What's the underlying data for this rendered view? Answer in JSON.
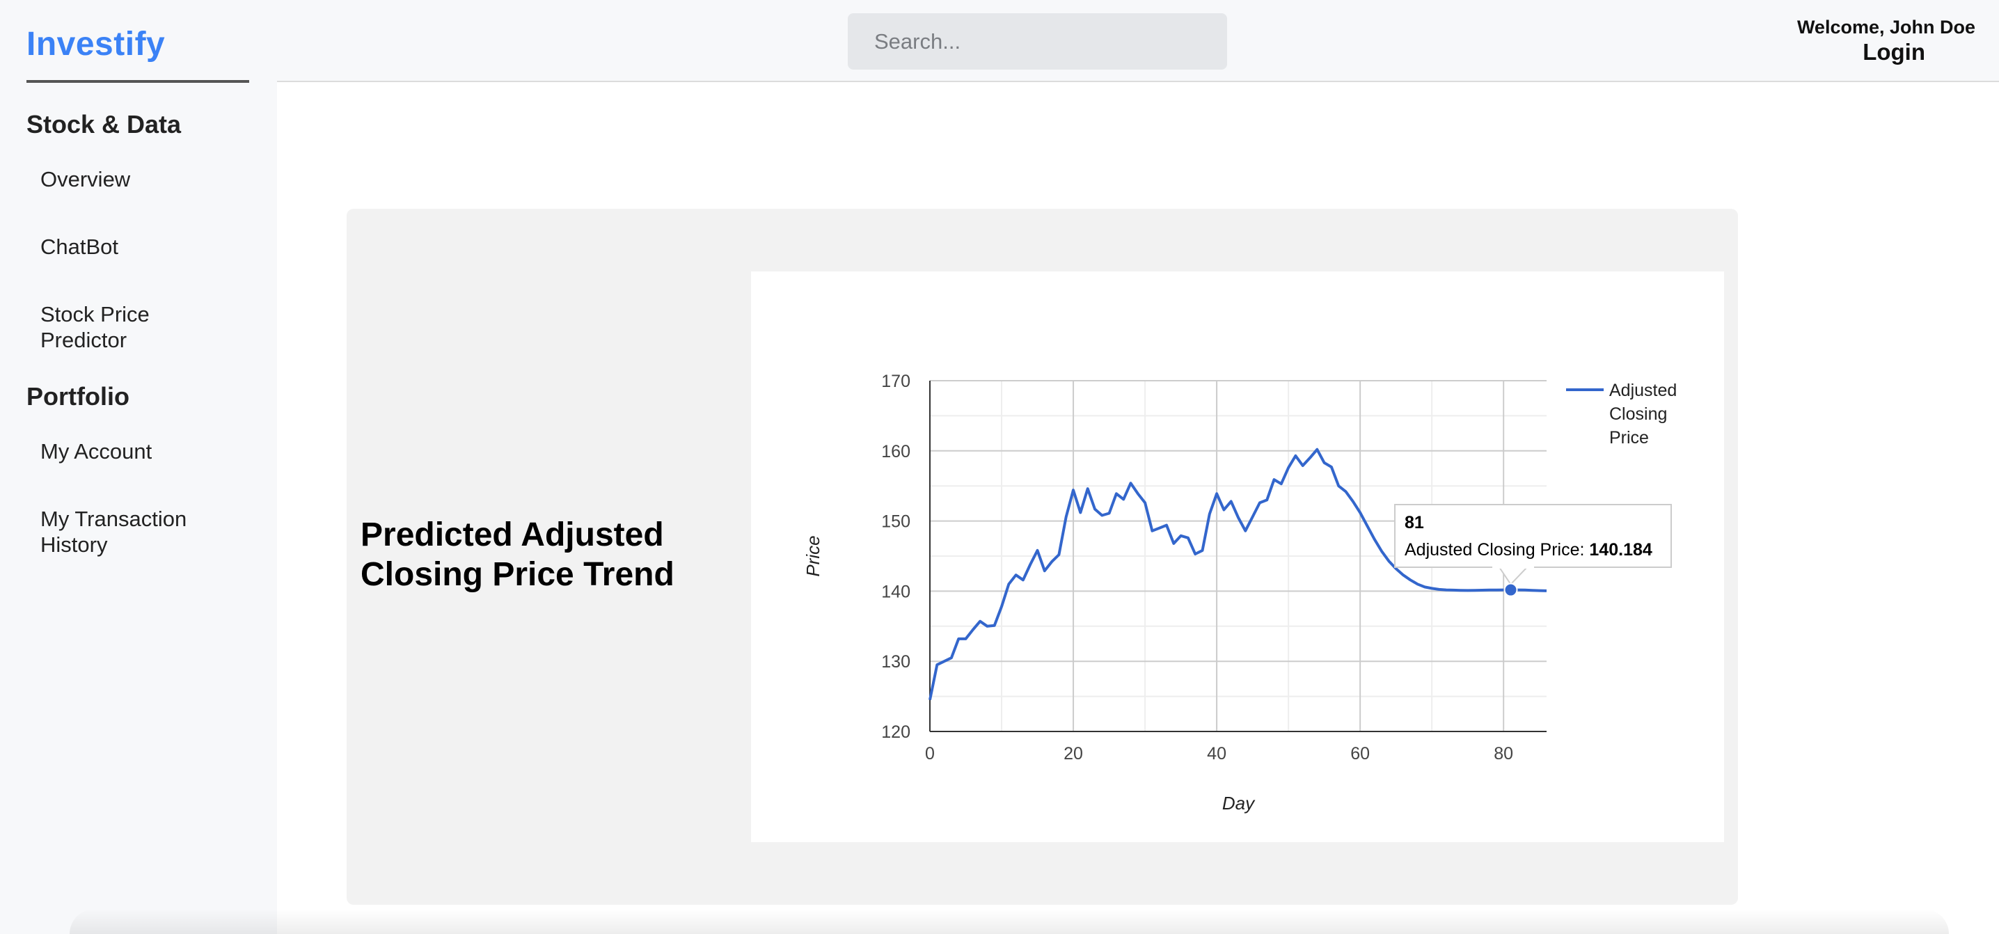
{
  "app": {
    "brand": "Investify"
  },
  "sidebar": {
    "sections": [
      {
        "title": "Stock & Data",
        "items": [
          "Overview",
          "ChatBot",
          "Stock Price Predictor"
        ]
      },
      {
        "title": "Portfolio",
        "items": [
          "My Account",
          "My Transaction History"
        ]
      }
    ]
  },
  "header": {
    "search_placeholder": "Search...",
    "welcome": "Welcome, John Doe",
    "login": "Login"
  },
  "main": {
    "card_title": "Predicted Adjusted Closing Price Trend"
  },
  "colors": {
    "brand": "#3b82f6",
    "series": "#3366cc"
  },
  "chart_data": {
    "type": "line",
    "xlabel": "Day",
    "ylabel": "Price",
    "xlim": [
      0,
      86
    ],
    "ylim": [
      120,
      170
    ],
    "x_ticks": [
      0,
      20,
      40,
      60,
      80
    ],
    "y_ticks": [
      120,
      130,
      140,
      150,
      160,
      170
    ],
    "grid": true,
    "legend_position": "right",
    "series": [
      {
        "name": "Adjusted Closing Price",
        "color": "#3366cc",
        "x": [
          0,
          1,
          2,
          3,
          4,
          5,
          6,
          7,
          8,
          9,
          10,
          11,
          12,
          13,
          14,
          15,
          16,
          17,
          18,
          19,
          20,
          21,
          22,
          23,
          24,
          25,
          26,
          27,
          28,
          29,
          30,
          31,
          32,
          33,
          34,
          35,
          36,
          37,
          38,
          39,
          40,
          41,
          42,
          43,
          44,
          45,
          46,
          47,
          48,
          49,
          50,
          51,
          52,
          53,
          54,
          55,
          56,
          57,
          58,
          59,
          60,
          61,
          62,
          63,
          64,
          65,
          66,
          67,
          68,
          69,
          70,
          71,
          72,
          73,
          74,
          75,
          76,
          77,
          78,
          79,
          80,
          81,
          82,
          83,
          84,
          85,
          86
        ],
        "values": [
          124.5,
          129.5,
          130,
          130.5,
          133.2,
          133.2,
          134.5,
          135.7,
          135,
          135.1,
          137.8,
          141,
          142.3,
          141.6,
          143.8,
          145.8,
          142.9,
          144.2,
          145.2,
          150.6,
          154.4,
          151.2,
          154.6,
          151.7,
          150.8,
          151.1,
          153.9,
          153.1,
          155.4,
          153.9,
          152.6,
          148.6,
          149,
          149.4,
          146.8,
          147.9,
          147.6,
          145.3,
          145.8,
          151,
          153.9,
          151.6,
          152.8,
          150.5,
          148.6,
          150.6,
          152.6,
          153,
          155.9,
          155.3,
          157.6,
          159.3,
          157.9,
          159,
          160.2,
          158.3,
          157.7,
          155,
          154.2,
          152.8,
          151.2,
          149.3,
          147.4,
          145.7,
          144.3,
          143.2,
          142.3,
          141.6,
          141,
          140.6,
          140.4,
          140.25,
          140.18,
          140.15,
          140.12,
          140.1,
          140.12,
          140.14,
          140.16,
          140.17,
          140.18,
          140.184,
          140.18,
          140.16,
          140.12,
          140.08,
          140.05
        ]
      }
    ],
    "tooltip": {
      "x_value": "81",
      "label": "Adjusted Closing Price: ",
      "value": "140.184"
    }
  }
}
